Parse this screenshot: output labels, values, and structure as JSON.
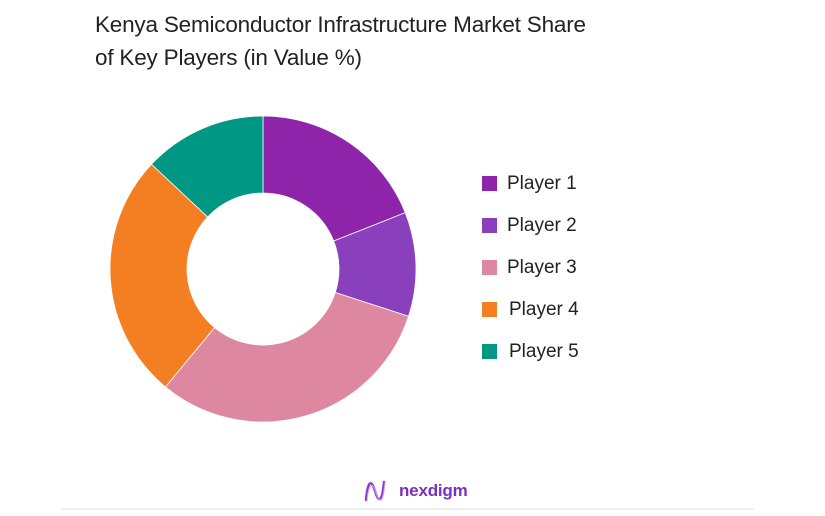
{
  "header": {
    "title_line1": "Kenya Semiconductor Infrastructure Market Share",
    "title_line2": "of Key Players (in Value %)"
  },
  "chart_data": {
    "type": "pie",
    "subtype": "donut",
    "title": "Kenya Semiconductor Infrastructure Market Share of Key Players (in Value %)",
    "categories": [
      "Player 1",
      "Player 2",
      "Player 3",
      "Player 4",
      "Player 5"
    ],
    "values": [
      19,
      11,
      31,
      26,
      13
    ],
    "colors": [
      "#8e24aa",
      "#8a3fbd",
      "#de87a0",
      "#f47f22",
      "#009784"
    ],
    "legend_position": "right",
    "start_angle_deg": 0,
    "direction": "clockwise",
    "unit": "%"
  },
  "legend": {
    "items": [
      {
        "label": "Player 1",
        "color": "#8e24aa"
      },
      {
        "label": "Player 2",
        "color": "#8a3fbd"
      },
      {
        "label": "Player 3",
        "color": "#de87a0"
      },
      {
        "label": "Player 4",
        "color": "#f47f22"
      },
      {
        "label": "Player 5",
        "color": "#009784"
      }
    ]
  },
  "footer": {
    "brand": "nexdigm",
    "brand_color": "#7b2fbf"
  }
}
